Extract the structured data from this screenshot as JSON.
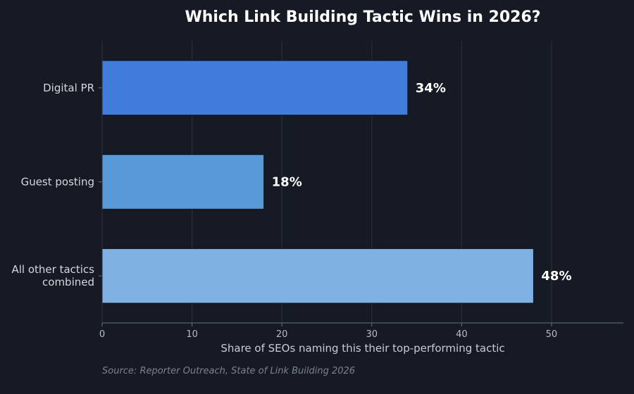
{
  "title": "Which Link Building Tactic Wins in 2026?",
  "source": "Source: Reporter Outreach, State of Link Building 2026",
  "colors": {
    "background": "#161a24",
    "grid": "#2c3140",
    "axis": "#6b7080",
    "bar_outline": "#0f1320"
  },
  "chart_data": {
    "type": "bar",
    "orientation": "horizontal",
    "title": "Which Link Building Tactic Wins in 2026?",
    "xlabel": "Share of SEOs naming this their top-performing tactic",
    "ylabel": "",
    "categories": [
      "Digital PR",
      "Guest posting",
      "All other tactics combined"
    ],
    "category_lines": [
      [
        "Digital PR"
      ],
      [
        "Guest posting"
      ],
      [
        "All other tactics",
        "combined"
      ]
    ],
    "values": [
      34,
      18,
      48
    ],
    "value_labels": [
      "34%",
      "18%",
      "48%"
    ],
    "bar_colors": [
      "#3f7cdc",
      "#5899d8",
      "#7fb2e3"
    ],
    "xlim": [
      0,
      58
    ],
    "xticks": [
      0,
      10,
      20,
      30,
      40,
      50
    ],
    "xtick_labels": [
      "0",
      "10",
      "20",
      "30",
      "40",
      "50"
    ],
    "grid": true,
    "legend": "none"
  }
}
